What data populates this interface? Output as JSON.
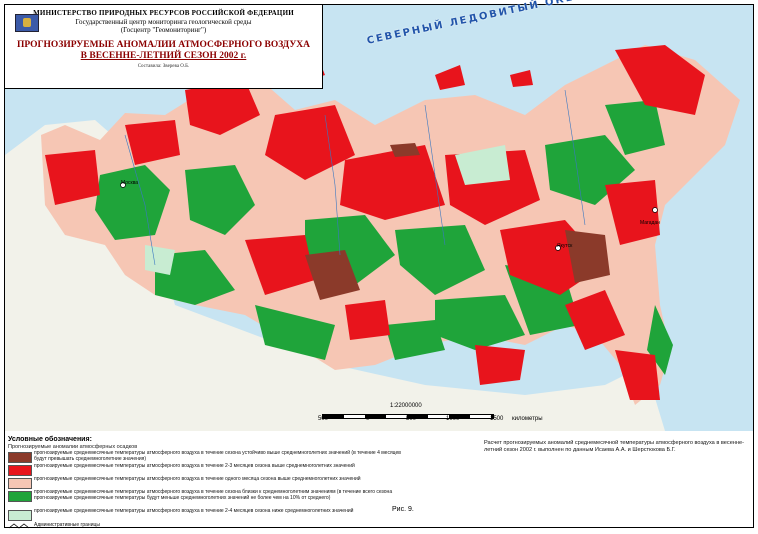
{
  "header": {
    "ministry": "МИНИСТЕРСТВО ПРИРОДНЫХ РЕСУРСОВ РОССИЙСКОЙ ФЕДЕРАЦИИ",
    "center": "Государственный центр мониторинга геологической среды",
    "center_short": "(Госцентр \"Геомониторинг\")",
    "title_line1": "ПРОГНОЗИРУЕМЫЕ АНОМАЛИИ АТМОСФЕРНОГО  ВОЗДУХА",
    "title_line2": "В ВЕСЕННЕ-ЛЕТНИЙ СЕЗОН 2002 г.",
    "compiled": "Составила: Зверева О.Б."
  },
  "map": {
    "ocean_label": "СЕВЕРНЫЙ ЛЕДОВИТЫЙ ОКЕАН",
    "scale_ratio": "1:22000000",
    "scale_ticks": [
      "500",
      "0",
      "500",
      "1000",
      "1500",
      "километры"
    ],
    "cities": [
      "Москва",
      "Якутск",
      "Магадан"
    ],
    "colors": {
      "water": "#c7e4f2",
      "land_outside": "#f2f2ea",
      "dark_brown": "#8b3a2a",
      "red": "#e8141c",
      "pink": "#f6c6b4",
      "green": "#1fa43a",
      "light_green": "#c8ecd2"
    }
  },
  "legend": {
    "title": "Условные обозначения:",
    "subtitle": "Прогнозируемые аномалии атмосферных осадков",
    "items": [
      {
        "color": "#8b3a2a",
        "text": "прогнозируемые среднемесячные температуры атмосферного воздуха в течение сезона устойчиво выше среднемноголетних значений (в течение 4 месяцев будут превышать среднемноголетние значения)"
      },
      {
        "color": "#e8141c",
        "text": "прогнозируемые среднемесячные температуры атмосферного воздуха в течение 2-3 месяцев сезона выше среднемноголетних значений"
      },
      {
        "color": "#f6c6b4",
        "text": "прогнозируемые среднемесячные температуры атмосферного воздуха в течение одного месяца сезона выше среднемноголетних значений"
      },
      {
        "color": "#1fa43a",
        "text": "прогнозируемые среднемесячные температуры атмосферного воздуха в течение сезона близки к среднемноголетним значениям (в течение всего сезона прогнозируемые среднемесячные температуры будут меньше среднемноголетних значений не более чем на 10% от среднего)"
      },
      {
        "color": "#c8ecd2",
        "text": "прогнозируемые среднемесячные температуры атмосферного воздуха в течение 2-4 месяцев сезона ниже среднемноголетних значений"
      }
    ],
    "border_text": "Административные границы"
  },
  "calc_note": "Расчет прогнозируемых аномалий среднемесячной температуры атмосферного воздуха в весенне-летний сезон 2002 г. выполнен по данным Исаева А.А. и Шерстюкова Б.Г.",
  "figure_label": "Рис. 9."
}
